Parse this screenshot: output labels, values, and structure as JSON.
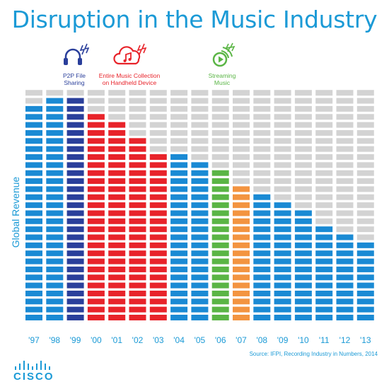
{
  "title": "Disruption in the Music Industry",
  "events": [
    {
      "label_lines": [
        "P2P File",
        "Sharing"
      ],
      "icon": "headphones-icon",
      "color": "#2a3f9b"
    },
    {
      "label_lines": [
        "Entire Music Collection",
        "on Handheld Device"
      ],
      "icon": "cloud-music-icon",
      "color": "#e8232a"
    },
    {
      "label_lines": [
        "Streaming",
        "Music"
      ],
      "icon": "streaming-icon",
      "color": "#5ab545"
    }
  ],
  "source": "Source: IFPI, Recording Industry in Numbers, 2014",
  "logo": "CISCO",
  "chart_data": {
    "type": "bar",
    "ylabel": "Global Revenue",
    "categories": [
      "'97",
      "'98",
      "'99",
      "'00",
      "'01",
      "'02",
      "'03",
      "'04",
      "'05",
      "'06",
      "'07",
      "'08",
      "'09",
      "'10",
      "'11",
      "'12",
      "'13"
    ],
    "values": [
      27,
      28,
      28,
      26,
      25,
      23,
      21,
      21,
      20,
      19,
      17,
      16,
      15,
      14,
      12,
      11,
      10
    ],
    "total_segments": 29,
    "colors": {
      "default": "#1a8ad4",
      "p2p": "#2a3f9b",
      "handheld": "#e8232a",
      "streaming": "#5ab545",
      "transition": "#f39440",
      "empty": "#d3d3d3"
    },
    "bar_color_keys": [
      "default",
      "default",
      "p2p",
      "handheld",
      "handheld",
      "handheld",
      "handheld",
      "default",
      "default",
      "streaming",
      "transition",
      "default",
      "default",
      "default",
      "default",
      "default",
      "default"
    ],
    "grid": false
  }
}
